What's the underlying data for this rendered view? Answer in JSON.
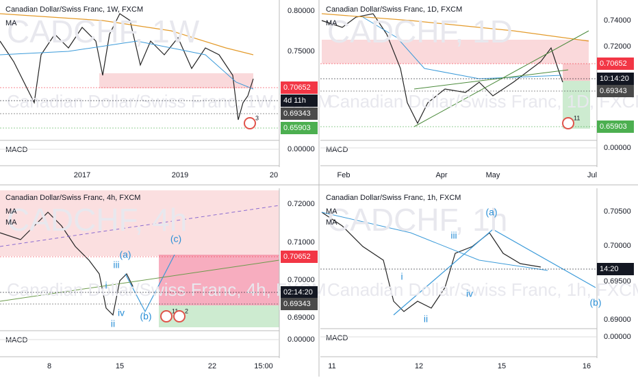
{
  "panels": [
    {
      "title": "Canadian Dollar/Swiss Franc, 1W, FXCM",
      "watermark": "CADCHF, 1W",
      "ma": [
        "MA"
      ],
      "yticks": [
        "0.80000",
        "0.75000"
      ],
      "tags": [
        {
          "label": "0.70652",
          "color": "#f23645"
        },
        {
          "label": "4d 11h",
          "color": "#131722"
        },
        {
          "label": "0.69343",
          "color": "#4a4a4a"
        },
        {
          "label": "0.65903",
          "color": "#4caf50"
        }
      ],
      "macd": "MACD",
      "macd_tick": "0.00000",
      "xticks": [
        "2017",
        "2019",
        "20"
      ],
      "badges": [
        "3"
      ],
      "waves": []
    },
    {
      "title": "Canadian Dollar/Swiss Franc, 1D, FXCM",
      "watermark": "CADCHF, 1D",
      "ma": [
        "MA"
      ],
      "yticks": [
        "0.74000",
        "0.72000"
      ],
      "tags": [
        {
          "label": "0.70652",
          "color": "#f23645"
        },
        {
          "label": "10:14:20",
          "color": "#131722"
        },
        {
          "label": "0.69343",
          "color": "#4a4a4a"
        },
        {
          "label": "0.65903",
          "color": "#4caf50"
        }
      ],
      "macd": "MACD",
      "macd_tick": "0.00000",
      "xticks": [
        "Feb",
        "Apr",
        "May",
        "Jul"
      ],
      "badges": [
        "11"
      ],
      "waves": []
    },
    {
      "title": "Canadian Dollar/Swiss Franc, 4h, FXCM",
      "watermark": "CADCHF, 4h",
      "ma": [
        "MA",
        "MA"
      ],
      "yticks": [
        "0.72000",
        "0.71000",
        "0.70000",
        "0.69000"
      ],
      "tags": [
        {
          "label": "0.70652",
          "color": "#f23645"
        },
        {
          "label": "02:14:20",
          "color": "#131722"
        },
        {
          "label": "0.69343",
          "color": "#4a4a4a"
        }
      ],
      "macd": "MACD",
      "macd_tick": "0.00000",
      "xticks": [
        "8",
        "15",
        "22",
        "15:00"
      ],
      "badges": [
        "11",
        "2"
      ],
      "waves": [
        "(a)",
        "iii",
        "i",
        "ii",
        "iv",
        "(b)",
        "(c)"
      ]
    },
    {
      "title": "Canadian Dollar/Swiss Franc, 1h, FXCM",
      "watermark": "CADCHF, 1h",
      "ma": [
        "MA",
        "MA"
      ],
      "yticks": [
        "0.70500",
        "0.70000",
        "0.69500",
        "0.69000"
      ],
      "tags": [
        {
          "label": "14:20",
          "color": "#131722"
        }
      ],
      "macd": "MACD",
      "macd_tick": "0.00000",
      "xticks": [
        "11",
        "12",
        "15",
        "16"
      ],
      "badges": [],
      "waves": [
        "(a)",
        "iii",
        "i",
        "ii",
        "iv",
        "(b)"
      ]
    }
  ]
}
